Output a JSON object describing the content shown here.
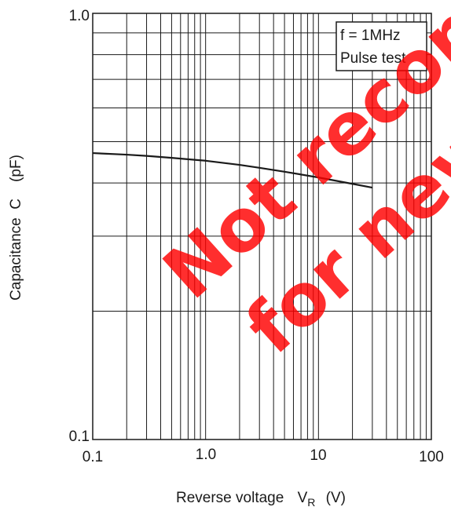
{
  "chart_data": {
    "type": "line",
    "xscale": "log",
    "yscale": "log",
    "xlim": [
      0.1,
      100
    ],
    "ylim": [
      0.1,
      1.0
    ],
    "xticks": [
      "0.1",
      "1.0",
      "10",
      "100"
    ],
    "yticks": [
      "1.0",
      "0.1"
    ],
    "xlabel": {
      "text": "Reverse voltage",
      "symbol": "V",
      "subscript": "R",
      "unit": "(V)"
    },
    "ylabel": "Capacitance  C    (pF)",
    "grid": true,
    "series": [
      {
        "x": [
          0.1,
          0.2,
          0.3,
          0.5,
          1.0,
          2.0,
          3.0,
          5.0,
          10.0,
          20.0,
          30.0
        ],
        "y": [
          0.47,
          0.466,
          0.463,
          0.458,
          0.451,
          0.441,
          0.434,
          0.425,
          0.412,
          0.398,
          0.39
        ]
      }
    ],
    "annotations": [
      "f = 1MHz",
      "Pulse test"
    ],
    "legend_position": "top-right",
    "watermark": [
      "Not recommended",
      "for new design"
    ],
    "watermark_color": "#ff0000",
    "line_color": "#1a1a1a"
  }
}
